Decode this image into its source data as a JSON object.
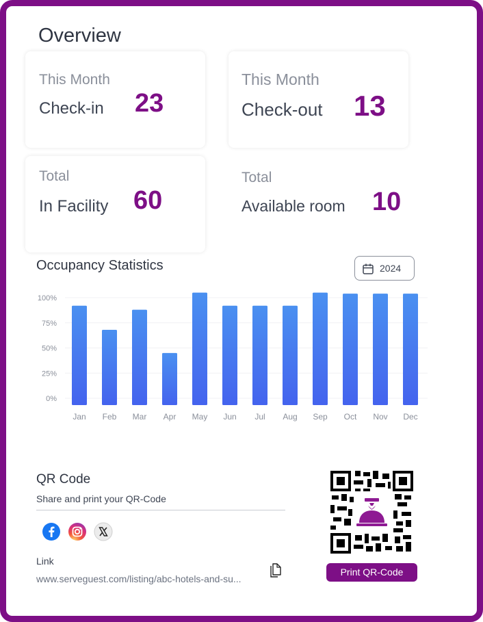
{
  "page": {
    "title": "Overview"
  },
  "cards": [
    {
      "label1": "This Month",
      "label2": "Check-in",
      "value": "23"
    },
    {
      "label1": "This Month",
      "label2": "Check-out",
      "value": "13"
    },
    {
      "label1": "Total",
      "label2": "In Facility",
      "value": "60"
    },
    {
      "label1": "Total",
      "label2": "Available room",
      "value": "10"
    }
  ],
  "occupancy": {
    "title": "Occupancy Statistics",
    "year": "2024",
    "icon": "calendar-icon"
  },
  "chart_data": {
    "type": "bar",
    "title": "Occupancy Statistics",
    "categories": [
      "Jan",
      "Feb",
      "Mar",
      "Apr",
      "May",
      "Jun",
      "Jul",
      "Aug",
      "Sep",
      "Oct",
      "Nov",
      "Dec"
    ],
    "values": [
      92,
      68,
      88,
      45,
      105,
      92,
      92,
      92,
      105,
      104,
      104,
      104
    ],
    "ylim": [
      0,
      100
    ],
    "yticks": [
      "100%",
      "75%",
      "50%",
      "25%",
      "0%"
    ],
    "grid": true,
    "bar_color_top": "#4a90f0",
    "bar_color_bottom": "#4463ee"
  },
  "qr": {
    "title": "QR Code",
    "subtitle": "Share and print your QR-Code",
    "link_label": "Link",
    "link_value": "www.serveguest.com/listing/abc-hotels-and-su...",
    "print_label": "Print QR-Code",
    "social": [
      "facebook-icon",
      "instagram-icon",
      "x-icon"
    ]
  },
  "colors": {
    "brand": "#7d0f86",
    "text": "#2f3542",
    "muted": "#8a8f9a"
  }
}
